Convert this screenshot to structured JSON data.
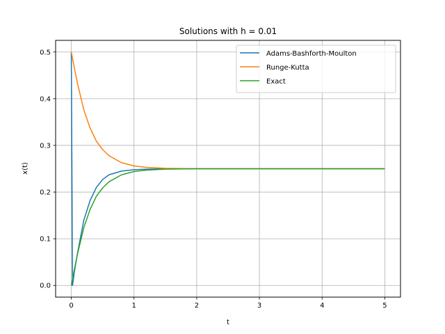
{
  "chart_data": {
    "type": "line",
    "title": "Solutions with h = 0.01",
    "xlabel": "t",
    "ylabel": "x(t)",
    "xlim": [
      -0.25,
      5.25
    ],
    "ylim": [
      -0.025,
      0.525
    ],
    "xticks": [
      0,
      1,
      2,
      3,
      4,
      5
    ],
    "xtick_labels": [
      "0",
      "1",
      "2",
      "3",
      "4",
      "5"
    ],
    "yticks": [
      0.0,
      0.1,
      0.2,
      0.3,
      0.4,
      0.5
    ],
    "ytick_labels": [
      "0.0",
      "0.1",
      "0.2",
      "0.3",
      "0.4",
      "0.5"
    ],
    "grid": true,
    "legend_position": "upper right",
    "series": [
      {
        "name": "Adams-Bashforth-Moulton",
        "color": "#1f77b4",
        "points": [
          [
            0,
            0.5
          ],
          [
            0.02,
            0.0
          ],
          [
            0.05,
            0.03
          ],
          [
            0.1,
            0.07
          ],
          [
            0.2,
            0.14
          ],
          [
            0.3,
            0.182
          ],
          [
            0.4,
            0.21
          ],
          [
            0.5,
            0.227
          ],
          [
            0.6,
            0.237
          ],
          [
            0.8,
            0.245
          ],
          [
            1.0,
            0.248
          ],
          [
            1.2,
            0.249
          ],
          [
            1.5,
            0.25
          ],
          [
            2,
            0.25
          ],
          [
            3,
            0.25
          ],
          [
            4,
            0.25
          ],
          [
            5,
            0.25
          ]
        ]
      },
      {
        "name": "Runge-Kutta",
        "color": "#ff7f0e",
        "points": [
          [
            0,
            0.5
          ],
          [
            0.05,
            0.465
          ],
          [
            0.1,
            0.432
          ],
          [
            0.2,
            0.376
          ],
          [
            0.3,
            0.337
          ],
          [
            0.4,
            0.309
          ],
          [
            0.5,
            0.291
          ],
          [
            0.6,
            0.278
          ],
          [
            0.8,
            0.263
          ],
          [
            1.0,
            0.256
          ],
          [
            1.2,
            0.253
          ],
          [
            1.5,
            0.251
          ],
          [
            2,
            0.25
          ],
          [
            3,
            0.25
          ],
          [
            4,
            0.25
          ],
          [
            5,
            0.25
          ]
        ]
      },
      {
        "name": "Exact",
        "color": "#2ca02c",
        "points": [
          [
            0,
            0.0
          ],
          [
            0.05,
            0.035
          ],
          [
            0.1,
            0.068
          ],
          [
            0.2,
            0.124
          ],
          [
            0.3,
            0.163
          ],
          [
            0.4,
            0.191
          ],
          [
            0.5,
            0.209
          ],
          [
            0.6,
            0.222
          ],
          [
            0.8,
            0.237
          ],
          [
            1.0,
            0.244
          ],
          [
            1.2,
            0.247
          ],
          [
            1.5,
            0.249
          ],
          [
            2,
            0.25
          ],
          [
            3,
            0.25
          ],
          [
            4,
            0.25
          ],
          [
            5,
            0.25
          ]
        ]
      }
    ]
  }
}
